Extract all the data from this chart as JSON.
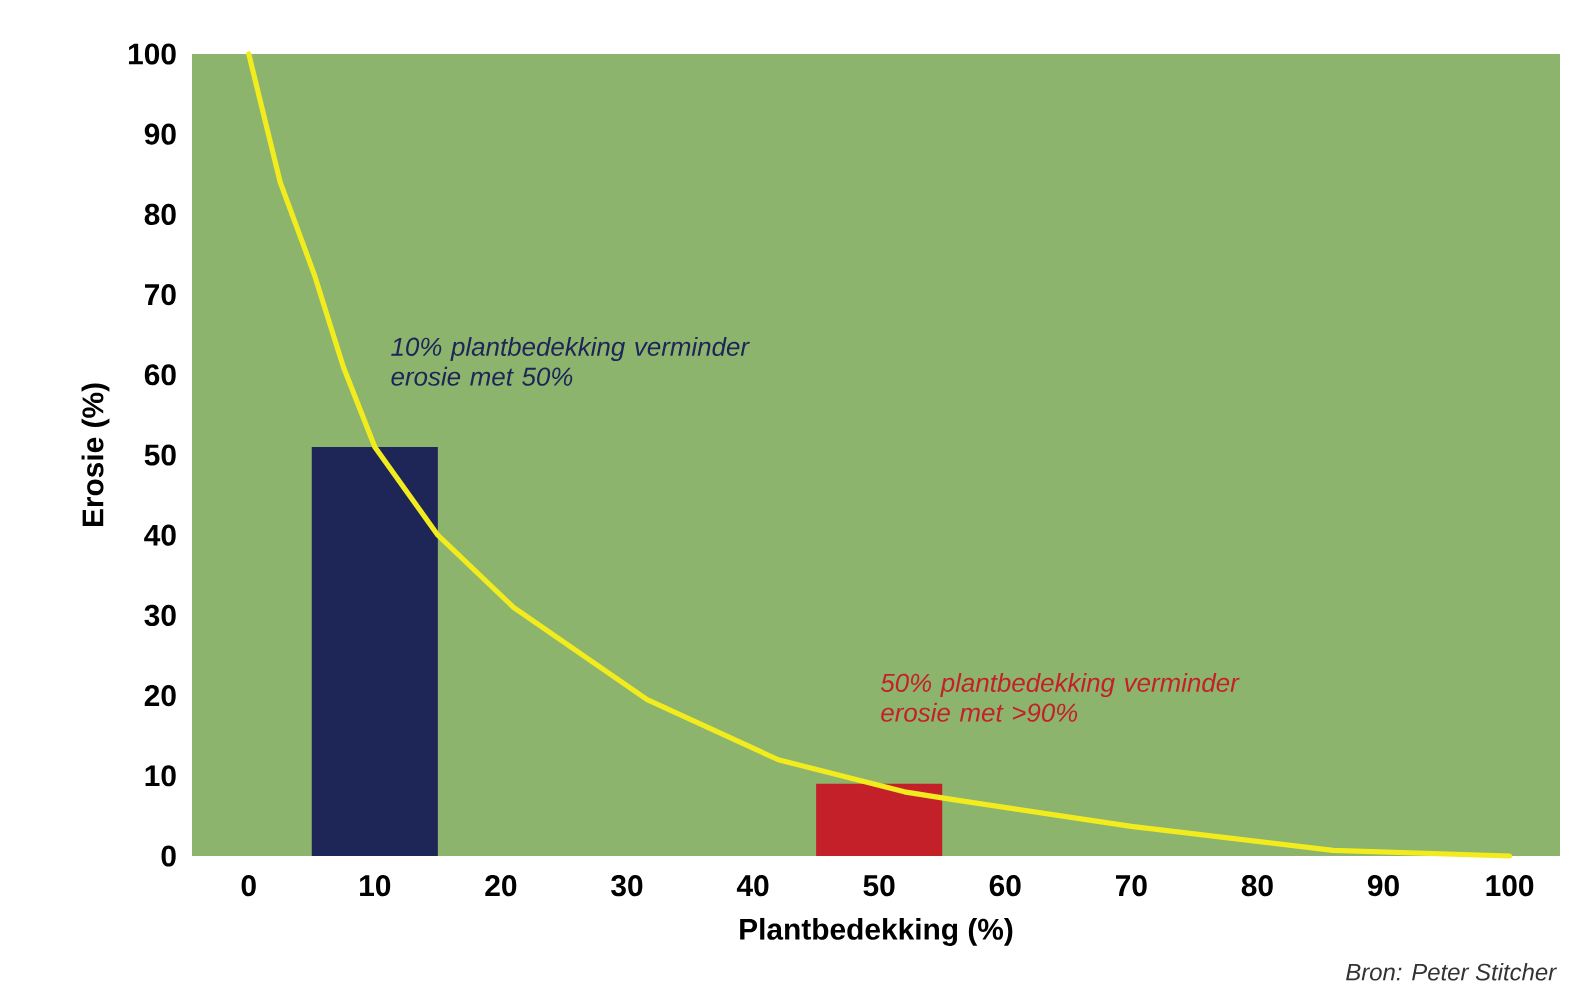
{
  "chart_data": {
    "type": "bar",
    "xlabel": "Plantbedekking (%)",
    "ylabel": "Erosie (%)",
    "xlim": [
      -4.5,
      104
    ],
    "ylim": [
      0,
      100
    ],
    "xticks": [
      0,
      10,
      20,
      30,
      40,
      50,
      60,
      70,
      80,
      90,
      100
    ],
    "yticks": [
      0,
      10,
      20,
      30,
      40,
      50,
      60,
      70,
      80,
      90,
      100
    ],
    "series": [
      {
        "x": [
          10,
          50
        ],
        "values": [
          51,
          9
        ],
        "colors": [
          "#1e2658",
          "#c4202a"
        ]
      },
      {
        "type": "line",
        "x": [
          0,
          2.5,
          5.2,
          7.5,
          10,
          15,
          21,
          31.6,
          42,
          52,
          56,
          70,
          86,
          100
        ],
        "values": [
          100,
          84,
          72.5,
          61,
          51,
          40,
          31,
          19.5,
          12,
          8,
          7,
          3.7,
          0.7,
          0
        ],
        "color": "#f2ec1e"
      }
    ],
    "annotations": [
      "*10% plantbedekking verminder erosie met 50%*",
      "*50% plantbedekking verminder erosie met >90%*",
      "*Bron: Peter Stitcher*"
    ]
  }
}
